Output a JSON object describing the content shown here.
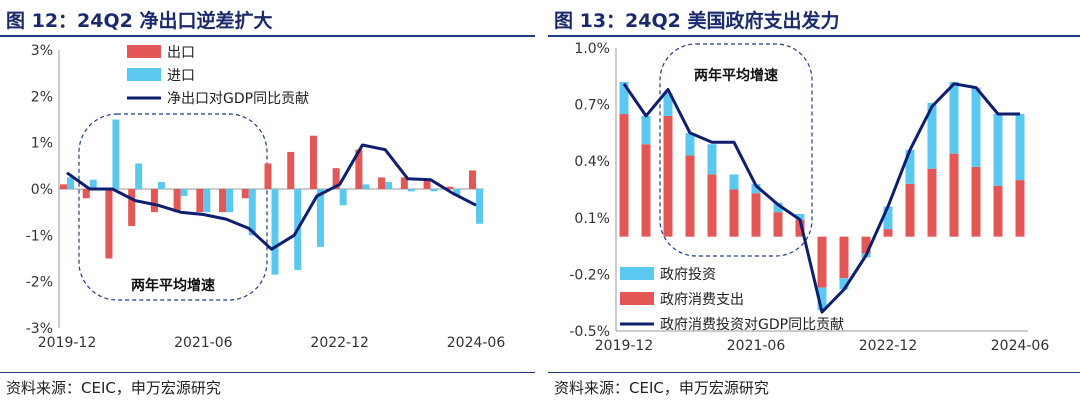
{
  "chart_data": [
    {
      "type": "bar",
      "title": "图 12：24Q2 净出口逆差扩大",
      "source": "资料来源：CEIC，申万宏源研究",
      "y_ticks": [
        "3%",
        "2%",
        "1%",
        "0%",
        "-1%",
        "-2%",
        "-3%"
      ],
      "ylim": [
        -3,
        3
      ],
      "x_tick_labels": [
        "2019-12",
        "2021-06",
        "2022-12",
        "2024-06"
      ],
      "x": [
        "2019-12",
        "2020-03",
        "2020-06",
        "2020-09",
        "2020-12",
        "2021-03",
        "2021-06",
        "2021-09",
        "2021-12",
        "2022-03",
        "2022-06",
        "2022-09",
        "2022-12",
        "2023-03",
        "2023-06",
        "2023-09",
        "2023-12",
        "2024-03",
        "2024-06"
      ],
      "annotation": "两年平均增速",
      "series": [
        {
          "name": "出口",
          "kind": "bar",
          "color": "#e45757",
          "values": [
            0.1,
            -0.2,
            -1.5,
            -0.8,
            -0.5,
            -0.5,
            -0.5,
            -0.5,
            -0.2,
            0.55,
            0.8,
            1.15,
            0.45,
            0.85,
            0.25,
            0.25,
            0.2,
            0.05,
            0.4
          ]
        },
        {
          "name": "进口",
          "kind": "bar",
          "color": "#5bc8f0",
          "values": [
            0.25,
            0.2,
            1.5,
            0.55,
            0.15,
            -0.15,
            -0.5,
            -0.5,
            -1.0,
            -1.85,
            -1.75,
            -1.25,
            -0.35,
            0.1,
            0.15,
            -0.05,
            -0.05,
            -0.15,
            -0.75
          ]
        },
        {
          "name": "净出口对GDP同比贡献",
          "kind": "line",
          "color": "#0d1f6e",
          "values": [
            0.35,
            0.0,
            0.0,
            -0.25,
            -0.35,
            -0.5,
            -0.55,
            -0.65,
            -0.85,
            -1.3,
            -1.0,
            -0.15,
            0.1,
            0.95,
            0.85,
            0.22,
            0.2,
            -0.1,
            -0.35
          ]
        }
      ]
    },
    {
      "type": "bar",
      "title": "图 13：24Q2 美国政府支出发力",
      "source": "资料来源：CEIC，申万宏源研究",
      "y_ticks": [
        "1.0%",
        "0.7%",
        "0.4%",
        "0.1%",
        "-0.2%",
        "-0.5%"
      ],
      "ylim": [
        -0.5,
        1.0
      ],
      "x_tick_labels": [
        "2019-12",
        "2021-06",
        "2022-12",
        "2024-06"
      ],
      "x": [
        "2019-12",
        "2020-03",
        "2020-06",
        "2020-09",
        "2020-12",
        "2021-03",
        "2021-06",
        "2021-09",
        "2021-12",
        "2022-03",
        "2022-06",
        "2022-09",
        "2022-12",
        "2023-03",
        "2023-06",
        "2023-09",
        "2023-12",
        "2024-03",
        "2024-06"
      ],
      "annotation": "两年平均增速",
      "stacked": true,
      "series": [
        {
          "name": "政府投资",
          "kind": "bar",
          "color": "#5bc8f0",
          "values": [
            0.17,
            0.15,
            0.12,
            0.12,
            0.16,
            0.08,
            0.05,
            0.05,
            0.03,
            -0.12,
            -0.06,
            -0.02,
            0.12,
            0.18,
            0.35,
            0.38,
            0.42,
            0.38,
            0.35
          ]
        },
        {
          "name": "政府消费支出",
          "kind": "bar",
          "color": "#e45757",
          "values": [
            0.65,
            0.49,
            0.64,
            0.43,
            0.33,
            0.25,
            0.23,
            0.13,
            0.09,
            -0.27,
            -0.22,
            -0.09,
            0.04,
            0.28,
            0.36,
            0.44,
            0.37,
            0.27,
            0.3
          ]
        },
        {
          "name": "政府消费投资对GDP同比贡献",
          "kind": "line",
          "color": "#0d1f6e",
          "values": [
            0.81,
            0.64,
            0.78,
            0.55,
            0.5,
            0.5,
            0.27,
            0.17,
            0.09,
            -0.4,
            -0.28,
            -0.1,
            0.16,
            0.46,
            0.69,
            0.81,
            0.79,
            0.65,
            0.65
          ]
        }
      ]
    }
  ]
}
